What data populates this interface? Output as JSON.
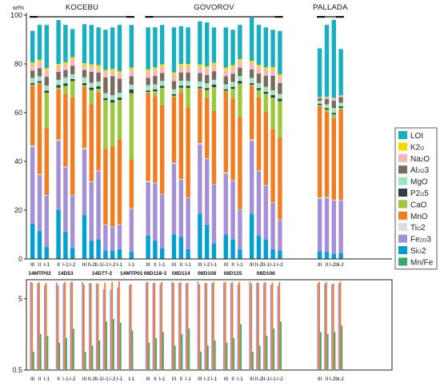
{
  "chart_data": [
    {
      "type": "bar",
      "stacked": true,
      "ylabel": "wt%",
      "ylim": [
        0,
        100
      ],
      "yticks": [
        0,
        20,
        40,
        60,
        80,
        100
      ],
      "groups": [
        {
          "label": "KOCEBU",
          "underline_samples": [
            "14MTP02",
            "14D53",
            "14D77-2",
            "14MTP01"
          ]
        },
        {
          "label": "GOVOROV",
          "underline_samples": [
            "08D118-3",
            "08D114",
            "08D108",
            "08D115",
            "08D106"
          ]
        },
        {
          "label": "PALLADA",
          "underline_samples": [
            "PALLADA"
          ]
        }
      ],
      "samples": [
        {
          "name": "14MTP02",
          "bars": [
            "III",
            "II",
            "I-1"
          ]
        },
        {
          "name": "14D53",
          "bars": [
            "II",
            "I-1",
            "I-2"
          ]
        },
        {
          "name": "14D77-2",
          "bars": [
            "III",
            "II-2",
            "II-1",
            "I-1",
            "I-2",
            "I-1"
          ]
        },
        {
          "name": "14MTP01",
          "bars": [
            "I-1"
          ]
        },
        {
          "name": "08D118-3",
          "bars": [
            "III",
            "II",
            "I-1"
          ]
        },
        {
          "name": "08D114",
          "bars": [
            "III",
            "II",
            "I-1"
          ]
        },
        {
          "name": "08D108",
          "bars": [
            "III",
            "I-2",
            "I-1"
          ]
        },
        {
          "name": "08D115",
          "bars": [
            "III",
            "II",
            "I-1"
          ]
        },
        {
          "name": "08D106",
          "bars": [
            "III",
            "II-2",
            "II-1",
            "I-1",
            "I-2"
          ]
        },
        {
          "name": "",
          "bars": [
            "III",
            "II",
            "I-2b",
            "I-2"
          ]
        }
      ],
      "components": [
        {
          "name": "MnO",
          "subscripts": "",
          "color": "#f47c20"
        },
        {
          "name": "CaO",
          "subscripts": "",
          "color": "#9ac93b"
        },
        {
          "name": "P2O5",
          "subscripts": "2,5",
          "color": "#2f3e46"
        },
        {
          "name": "MgO",
          "subscripts": "",
          "color": "#99e6c0"
        },
        {
          "name": "Al2O3",
          "subscripts": "2,3",
          "color": "#7a6a60"
        },
        {
          "name": "Na2O",
          "subscripts": "2",
          "color": "#f7b8b5"
        },
        {
          "name": "K2O",
          "subscripts": "2",
          "color": "#f5da00"
        },
        {
          "name": "LOI",
          "subscripts": "",
          "color": "#17b0c1"
        },
        {
          "name": "TiO2",
          "subscripts": "2",
          "color": "#dddddd"
        },
        {
          "name": "Fe2O3",
          "subscripts": "2,3",
          "color": "#a58fd6"
        },
        {
          "name": "SiO2",
          "subscripts": "2",
          "color": "#009fd4"
        }
      ],
      "legend": {
        "placement": "right",
        "order": [
          "LOI",
          "K2O",
          "Na2O",
          "Al2O3",
          "MgO",
          "P2O5",
          "CaO",
          "MnO",
          "TiO2",
          "Fe2O3",
          "SiO2",
          "Mn/Fe"
        ]
      },
      "stack_order": [
        "SiO2",
        "Fe2O3",
        "TiO2",
        "MnO",
        "CaO",
        "P2O5",
        "MgO",
        "Al2O3",
        "Na2O",
        "K2O",
        "LOI"
      ],
      "values": [
        {
          "sample": "14MTP02",
          "bar": "III",
          "SiO2": 14.5,
          "Fe2O3": 31.5,
          "TiO2": 0.5,
          "MnO": 24.5,
          "CaO": 0.5,
          "P2O5": 0.6,
          "MgO": 2.2,
          "Al2O3": 3,
          "Na2O": 2.3,
          "K2O": 1,
          "LOI": 13
        },
        {
          "sample": "14MTP02",
          "bar": "II",
          "SiO2": 11.5,
          "Fe2O3": 23,
          "TiO2": 0.3,
          "MnO": 37,
          "CaO": 0.5,
          "P2O5": 0.6,
          "MgO": 2,
          "Al2O3": 3.3,
          "Na2O": 2.5,
          "K2O": 1,
          "LOI": 14.3
        },
        {
          "sample": "14MTP02",
          "bar": "I-1",
          "SiO2": 5,
          "Fe2O3": 21,
          "TiO2": 0.2,
          "MnO": 27.5,
          "CaO": 14.5,
          "P2O5": 0.9,
          "MgO": 2,
          "Al2O3": 3.7,
          "Na2O": 2.5,
          "K2O": 1,
          "LOI": 17.7
        },
        {
          "sample": "14D53",
          "bar": "II",
          "SiO2": 20,
          "Fe2O3": 28.5,
          "TiO2": 0.5,
          "MnO": 20.5,
          "CaO": 0.8,
          "P2O5": 1,
          "MgO": 2.2,
          "Al2O3": 3.3,
          "Na2O": 2.2,
          "K2O": 1,
          "LOI": 18
        },
        {
          "sample": "14D53",
          "bar": "I-1",
          "SiO2": 11,
          "Fe2O3": 26.5,
          "TiO2": 0.3,
          "MnO": 30,
          "CaO": 3.2,
          "P2O5": 1,
          "MgO": 2.5,
          "Al2O3": 3,
          "Na2O": 2.2,
          "K2O": 1,
          "LOI": 15.3
        },
        {
          "sample": "14D53",
          "bar": "I-2",
          "SiO2": 4.5,
          "Fe2O3": 21.5,
          "TiO2": 0.2,
          "MnO": 40,
          "CaO": 6.8,
          "P2O5": 0.8,
          "MgO": 2,
          "Al2O3": 3.5,
          "Na2O": 2.5,
          "K2O": 1,
          "LOI": 11.5
        },
        {
          "sample": "14D77-2",
          "bar": "III",
          "SiO2": 18,
          "Fe2O3": 27,
          "TiO2": 0.5,
          "MnO": 25,
          "CaO": 0.8,
          "P2O5": 0.8,
          "MgO": 2.4,
          "Al2O3": 3,
          "Na2O": 1.8,
          "K2O": 1,
          "LOI": 16
        },
        {
          "sample": "14D77-2",
          "bar": "II-2",
          "SiO2": 7.5,
          "Fe2O3": 24,
          "TiO2": 0.3,
          "MnO": 31.5,
          "CaO": 6,
          "P2O5": 1,
          "MgO": 2,
          "Al2O3": 4.5,
          "Na2O": 2,
          "K2O": 1,
          "LOI": 16.2
        },
        {
          "sample": "14D77-2",
          "bar": "II-1",
          "SiO2": 8,
          "Fe2O3": 28,
          "TiO2": 0.3,
          "MnO": 32,
          "CaO": 1.5,
          "P2O5": 1,
          "MgO": 2,
          "Al2O3": 3.7,
          "Na2O": 2,
          "K2O": 1,
          "LOI": 15.5
        },
        {
          "sample": "14D77-2",
          "bar": "I-1",
          "SiO2": 3.5,
          "Fe2O3": 10.5,
          "TiO2": 0.2,
          "MnO": 31,
          "CaO": 20,
          "P2O5": 0.8,
          "MgO": 2,
          "Al2O3": 6.5,
          "Na2O": 2,
          "K2O": 1,
          "LOI": 16.5
        },
        {
          "sample": "14D77-2",
          "bar": "I-2",
          "SiO2": 3.5,
          "Fe2O3": 9.5,
          "TiO2": 0.2,
          "MnO": 33,
          "CaO": 18,
          "P2O5": 1,
          "MgO": 2,
          "Al2O3": 7.8,
          "Na2O": 2,
          "K2O": 1,
          "LOI": 17
        },
        {
          "sample": "14D77-2",
          "bar": "I-1",
          "SiO2": 4,
          "Fe2O3": 10,
          "TiO2": 0.2,
          "MnO": 35,
          "CaO": 16,
          "P2O5": 1,
          "MgO": 2,
          "Al2O3": 5.8,
          "Na2O": 2,
          "K2O": 1,
          "LOI": 19
        },
        {
          "sample": "14MTP01",
          "bar": "I-1",
          "SiO2": 3,
          "Fe2O3": 17.5,
          "TiO2": 0.3,
          "MnO": 20,
          "CaO": 27.2,
          "P2O5": 1.5,
          "MgO": 2,
          "Al2O3": 3.5,
          "Na2O": 2.5,
          "K2O": 1,
          "LOI": 17.5
        },
        {
          "sample": "08D118-3",
          "bar": "III",
          "SiO2": 9.5,
          "Fe2O3": 22,
          "TiO2": 0.5,
          "MnO": 36,
          "CaO": 0.5,
          "P2O5": 0.6,
          "MgO": 2.2,
          "Al2O3": 3,
          "Na2O": 2.5,
          "K2O": 1,
          "LOI": 17.2
        },
        {
          "sample": "08D118-3",
          "bar": "II",
          "SiO2": 7.5,
          "Fe2O3": 23.5,
          "TiO2": 0.3,
          "MnO": 35.5,
          "CaO": 2,
          "P2O5": 0.8,
          "MgO": 2,
          "Al2O3": 3.5,
          "Na2O": 2.5,
          "K2O": 1,
          "LOI": 16.4
        },
        {
          "sample": "08D118-3",
          "bar": "I-1",
          "SiO2": 4.5,
          "Fe2O3": 22,
          "TiO2": 0.2,
          "MnO": 36.5,
          "CaO": 7,
          "P2O5": 0.8,
          "MgO": 2,
          "Al2O3": 3.3,
          "Na2O": 2.5,
          "K2O": 1,
          "LOI": 16.2
        },
        {
          "sample": "08D114",
          "bar": "III",
          "SiO2": 10,
          "Fe2O3": 29,
          "TiO2": 0.5,
          "MnO": 27,
          "CaO": 0.5,
          "P2O5": 0.6,
          "MgO": 2,
          "Al2O3": 3.4,
          "Na2O": 2.5,
          "K2O": 1,
          "LOI": 18.5
        },
        {
          "sample": "08D114",
          "bar": "II",
          "SiO2": 9,
          "Fe2O3": 23.5,
          "TiO2": 0.3,
          "MnO": 35.5,
          "CaO": 2,
          "P2O5": 0.8,
          "MgO": 2,
          "Al2O3": 3.4,
          "Na2O": 2.5,
          "K2O": 1,
          "LOI": 15.5
        },
        {
          "sample": "08D114",
          "bar": "I-1",
          "SiO2": 4,
          "Fe2O3": 21,
          "TiO2": 0.2,
          "MnO": 37,
          "CaO": 8,
          "P2O5": 0.8,
          "MgO": 2,
          "Al2O3": 3.5,
          "Na2O": 2.5,
          "K2O": 1,
          "LOI": 15
        },
        {
          "sample": "08D108",
          "bar": "III",
          "SiO2": 18.5,
          "Fe2O3": 28.5,
          "TiO2": 0.5,
          "MnO": 22,
          "CaO": 0.5,
          "P2O5": 0.6,
          "MgO": 2.2,
          "Al2O3": 3.5,
          "Na2O": 2.5,
          "K2O": 1,
          "LOI": 17.7
        },
        {
          "sample": "08D108",
          "bar": "I-2",
          "SiO2": 14,
          "Fe2O3": 27,
          "TiO2": 0.3,
          "MnO": 25,
          "CaO": 3,
          "P2O5": 0.8,
          "MgO": 2,
          "Al2O3": 3.4,
          "Na2O": 2.5,
          "K2O": 1,
          "LOI": 18
        },
        {
          "sample": "08D108",
          "bar": "I-1",
          "SiO2": 6.5,
          "Fe2O3": 24,
          "TiO2": 0.2,
          "MnO": 30,
          "CaO": 9.8,
          "P2O5": 1,
          "MgO": 2,
          "Al2O3": 3.5,
          "Na2O": 2.5,
          "K2O": 1,
          "LOI": 14.5
        },
        {
          "sample": "08D115",
          "bar": "III",
          "SiO2": 10,
          "Fe2O3": 25,
          "TiO2": 0.5,
          "MnO": 33,
          "CaO": 0.5,
          "P2O5": 0.6,
          "MgO": 2,
          "Al2O3": 3.4,
          "Na2O": 2.5,
          "K2O": 1,
          "LOI": 16.5
        },
        {
          "sample": "08D115",
          "bar": "II",
          "SiO2": 8,
          "Fe2O3": 24,
          "TiO2": 0.3,
          "MnO": 33.5,
          "CaO": 4,
          "P2O5": 0.8,
          "MgO": 2,
          "Al2O3": 3.4,
          "Na2O": 2.5,
          "K2O": 1,
          "LOI": 14.5
        },
        {
          "sample": "08D115",
          "bar": "I-1",
          "SiO2": 4,
          "Fe2O3": 16,
          "TiO2": 0.2,
          "MnO": 38,
          "CaO": 13.8,
          "P2O5": 1,
          "MgO": 2,
          "Al2O3": 3.5,
          "Na2O": 2.5,
          "K2O": 1,
          "LOI": 14
        },
        {
          "sample": "08D106",
          "bar": "III",
          "SiO2": 18.5,
          "Fe2O3": 30,
          "TiO2": 0.5,
          "MnO": 22,
          "CaO": 0.5,
          "P2O5": 0.6,
          "MgO": 2.2,
          "Al2O3": 3.5,
          "Na2O": 2.5,
          "K2O": 1,
          "LOI": 17.7
        },
        {
          "sample": "08D106",
          "bar": "II-2",
          "SiO2": 9.5,
          "Fe2O3": 26.5,
          "TiO2": 0.3,
          "MnO": 30,
          "CaO": 3,
          "P2O5": 0.8,
          "MgO": 2,
          "Al2O3": 4,
          "Na2O": 2.5,
          "K2O": 1,
          "LOI": 16.4
        },
        {
          "sample": "08D106",
          "bar": "II-1",
          "SiO2": 8,
          "Fe2O3": 22,
          "TiO2": 0.3,
          "MnO": 30,
          "CaO": 7.5,
          "P2O5": 0.8,
          "MgO": 2,
          "Al2O3": 4.5,
          "Na2O": 2.5,
          "K2O": 1,
          "LOI": 16.4
        },
        {
          "sample": "08D106",
          "bar": "I-1",
          "SiO2": 4,
          "Fe2O3": 19,
          "TiO2": 0.2,
          "MnO": 30,
          "CaO": 13,
          "P2O5": 1,
          "MgO": 2,
          "Al2O3": 6,
          "Na2O": 2.5,
          "K2O": 1,
          "LOI": 15.3
        },
        {
          "sample": "08D106",
          "bar": "I-2",
          "SiO2": 3.5,
          "Fe2O3": 12.5,
          "TiO2": 0.2,
          "MnO": 33.5,
          "CaO": 15,
          "P2O5": 1,
          "MgO": 2,
          "Al2O3": 4.5,
          "Na2O": 2.5,
          "K2O": 1,
          "LOI": 17.8
        },
        {
          "sample": "",
          "bar": "III",
          "SiO2": 3.2,
          "Fe2O3": 21.5,
          "TiO2": 0.5,
          "MnO": 37.5,
          "CaO": 0.5,
          "P2O5": 0.5,
          "MgO": 1.2,
          "Al2O3": 1,
          "Na2O": 0.3,
          "K2O": 0.2,
          "LOI": 20
        },
        {
          "sample": "",
          "bar": "II",
          "SiO2": 3,
          "Fe2O3": 22,
          "TiO2": 0.3,
          "MnO": 35,
          "CaO": 1,
          "P2O5": 0.6,
          "MgO": 1.5,
          "Al2O3": 2.3,
          "Na2O": 0.6,
          "K2O": 0.2,
          "LOI": 29.5
        },
        {
          "sample": "",
          "bar": "I-2b",
          "SiO2": 2,
          "Fe2O3": 22,
          "TiO2": 0.3,
          "MnO": 33.5,
          "CaO": 1.5,
          "P2O5": 0.6,
          "MgO": 2,
          "Al2O3": 3,
          "Na2O": 1,
          "K2O": 0.2,
          "LOI": 32
        },
        {
          "sample": "",
          "bar": "I-2",
          "SiO2": 2.5,
          "Fe2O3": 21.5,
          "TiO2": 0.3,
          "MnO": 37,
          "CaO": 0.7,
          "P2O5": 0.6,
          "MgO": 1.5,
          "Al2O3": 2.3,
          "Na2O": 0.5,
          "K2O": 0.2,
          "LOI": 19
        }
      ]
    },
    {
      "type": "bar",
      "yscale": "log",
      "ylim": [
        0.5,
        9
      ],
      "yticks": [
        0.5,
        5
      ],
      "series": [
        {
          "name": "Fe2O3",
          "subscripts": "2,3",
          "color": "#a58fd6"
        },
        {
          "name": "MnO",
          "subscripts": "",
          "color": "#f47c20"
        },
        {
          "name": "Mn/Fe",
          "subscripts": "",
          "color": "#3aaa6a"
        }
      ],
      "values": [
        {
          "Fe2O3": 8.6,
          "MnO": 8.4,
          "Mn/Fe": 0.9
        },
        {
          "Fe2O3": 8.2,
          "MnO": 8.5,
          "Mn/Fe": 1.6
        },
        {
          "Fe2O3": 7.8,
          "MnO": 8.3,
          "Mn/Fe": 1.5
        },
        {
          "Fe2O3": 8.5,
          "MnO": 7.8,
          "Mn/Fe": 1.2
        },
        {
          "Fe2O3": 8.2,
          "MnO": 8.6,
          "Mn/Fe": 1.4
        },
        {
          "Fe2O3": 8.4,
          "MnO": 8.7,
          "Mn/Fe": 1.9
        },
        {
          "Fe2O3": 8.6,
          "MnO": 7.9,
          "Mn/Fe": 0.9
        },
        {
          "Fe2O3": 8.3,
          "MnO": 8.2,
          "Mn/Fe": 1.1
        },
        {
          "Fe2O3": 8.1,
          "MnO": 8.2,
          "Mn/Fe": 1.3
        },
        {
          "Fe2O3": 6.8,
          "MnO": 8.4,
          "Mn/Fe": 2.4
        },
        {
          "Fe2O3": 6.7,
          "MnO": 8.6,
          "Mn/Fe": 2.6
        },
        {
          "Fe2O3": 7.2,
          "MnO": 8.8,
          "Mn/Fe": 2.3
        },
        {
          "Fe2O3": 7.8,
          "MnO": 8.0,
          "Mn/Fe": 1.8
        },
        {
          "Fe2O3": 8.4,
          "MnO": 8.6,
          "Mn/Fe": 1.2
        },
        {
          "Fe2O3": 8.2,
          "MnO": 8.4,
          "Mn/Fe": 1.4
        },
        {
          "Fe2O3": 8.0,
          "MnO": 8.6,
          "Mn/Fe": 1.7
        },
        {
          "Fe2O3": 8.6,
          "MnO": 8.3,
          "Mn/Fe": 1.1
        },
        {
          "Fe2O3": 8.3,
          "MnO": 8.5,
          "Mn/Fe": 1.6
        },
        {
          "Fe2O3": 8.1,
          "MnO": 8.4,
          "Mn/Fe": 1.9
        },
        {
          "Fe2O3": 8.7,
          "MnO": 8.0,
          "Mn/Fe": 0.9
        },
        {
          "Fe2O3": 8.3,
          "MnO": 8.3,
          "Mn/Fe": 1.1
        },
        {
          "Fe2O3": 8.2,
          "MnO": 8.6,
          "Mn/Fe": 1.3
        },
        {
          "Fe2O3": 8.4,
          "MnO": 8.6,
          "Mn/Fe": 1.2
        },
        {
          "Fe2O3": 8.3,
          "MnO": 8.5,
          "Mn/Fe": 1.4
        },
        {
          "Fe2O3": 7.9,
          "MnO": 8.7,
          "Mn/Fe": 2.2
        },
        {
          "Fe2O3": 8.7,
          "MnO": 8.2,
          "Mn/Fe": 0.9
        },
        {
          "Fe2O3": 8.4,
          "MnO": 8.4,
          "Mn/Fe": 1.1
        },
        {
          "Fe2O3": 8.2,
          "MnO": 8.6,
          "Mn/Fe": 1.5
        },
        {
          "Fe2O3": 7.9,
          "MnO": 8.4,
          "Mn/Fe": 1.9
        },
        {
          "Fe2O3": 7.6,
          "MnO": 8.6,
          "Mn/Fe": 2.4
        },
        {
          "Fe2O3": 8.2,
          "MnO": 8.6,
          "Mn/Fe": 1.7
        },
        {
          "Fe2O3": 8.1,
          "MnO": 8.6,
          "Mn/Fe": 1.6
        },
        {
          "Fe2O3": 7.9,
          "MnO": 8.2,
          "Mn/Fe": 1.7
        },
        {
          "Fe2O3": 8.2,
          "MnO": 8.7,
          "Mn/Fe": 2.1
        }
      ]
    }
  ]
}
